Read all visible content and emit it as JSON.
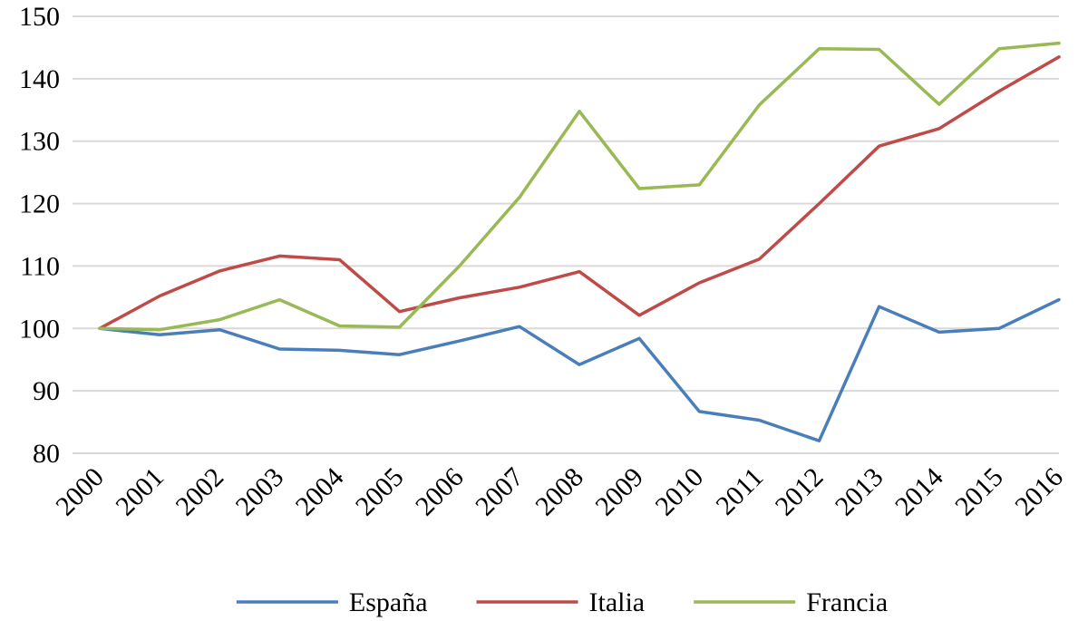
{
  "chart_data": {
    "type": "line",
    "title": "",
    "xlabel": "",
    "ylabel": "",
    "ylim": [
      80,
      150
    ],
    "yticks": [
      80,
      90,
      100,
      110,
      120,
      130,
      140,
      150
    ],
    "grid": "horizontal",
    "legend_position": "bottom",
    "x": [
      "2000",
      "2001",
      "2002",
      "2003",
      "2004",
      "2005",
      "2006",
      "2007",
      "2008",
      "2009",
      "2010",
      "2011",
      "2012",
      "2013",
      "2014",
      "2015",
      "2016"
    ],
    "series": [
      {
        "name": "España",
        "color": "#4a7ebb",
        "values": [
          100,
          99,
          99.8,
          96.7,
          96.5,
          95.8,
          98,
          100.3,
          94.2,
          98.4,
          86.7,
          85.3,
          82,
          103.5,
          99.4,
          100,
          104.6
        ]
      },
      {
        "name": "Italia",
        "color": "#be4b48",
        "values": [
          100,
          105.2,
          109.2,
          111.6,
          111,
          102.7,
          104.9,
          106.6,
          109.1,
          102.1,
          107.3,
          111.1,
          120,
          129.2,
          132,
          138,
          143.5
        ]
      },
      {
        "name": "Francia",
        "color": "#98b954",
        "values": [
          100,
          99.8,
          101.4,
          104.6,
          100.4,
          100.2,
          110,
          121,
          134.8,
          122.4,
          123,
          135.8,
          144.8,
          144.7,
          135.9,
          144.8,
          145.7
        ]
      }
    ]
  }
}
